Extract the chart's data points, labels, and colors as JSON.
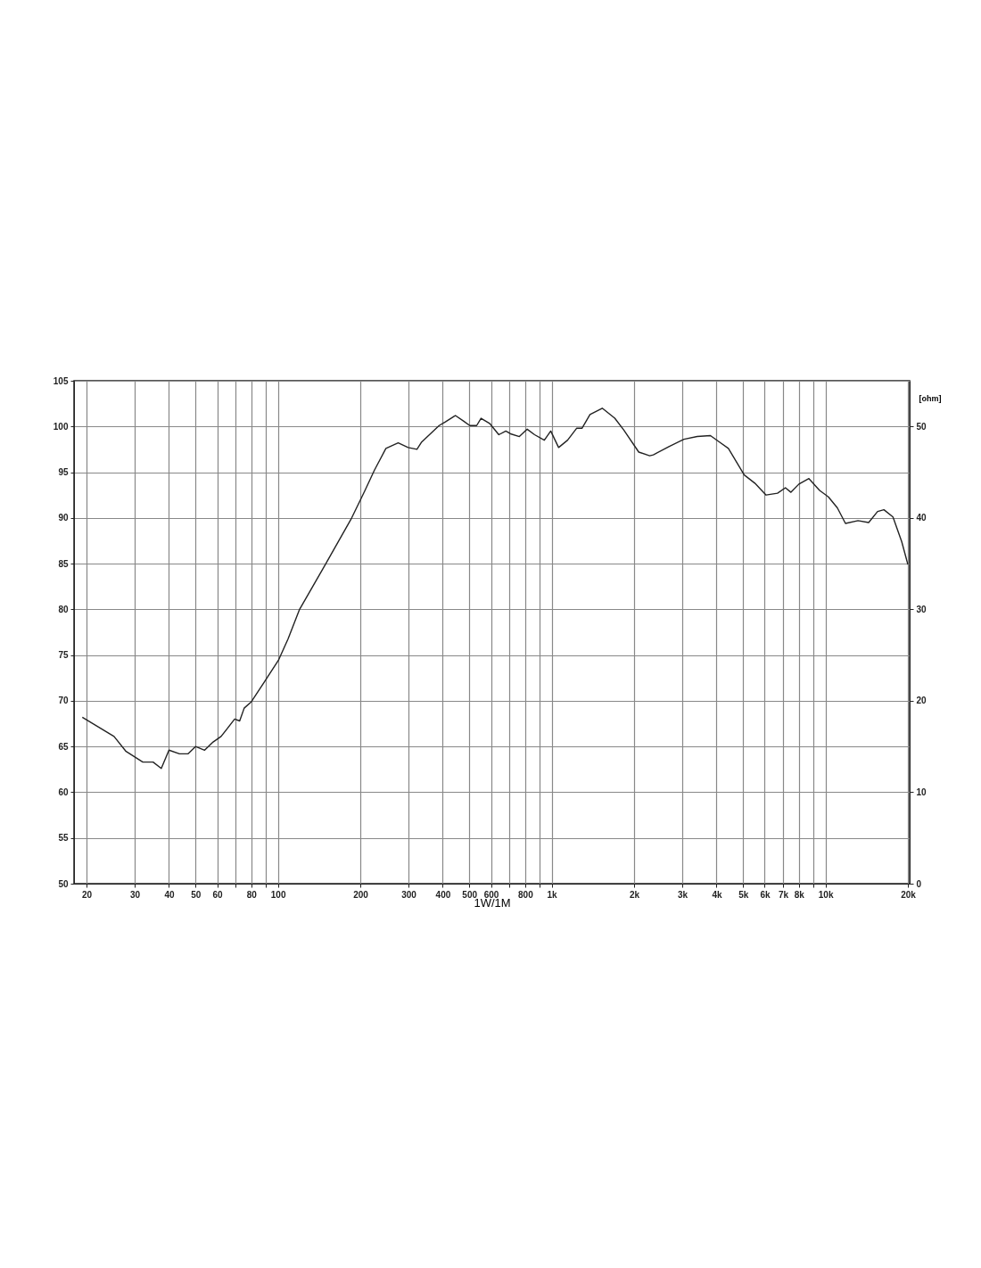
{
  "chart_data": {
    "type": "line",
    "xlabel": "1W/1M",
    "y2label": "[ohm]",
    "log": "x",
    "grid": true,
    "marker": "none",
    "line_style": "solid",
    "xlim": [
      18,
      20300
    ],
    "ylim": [
      50,
      105
    ],
    "y2lim": [
      0,
      55
    ],
    "xticks": [
      20,
      30,
      40,
      50,
      60,
      {
        "value": 70,
        "label": null
      },
      80,
      {
        "value": 90,
        "label": null
      },
      100,
      200,
      300,
      400,
      500,
      600,
      {
        "value": 700,
        "label": null
      },
      800,
      {
        "value": 900,
        "label": null
      },
      {
        "value": 1000,
        "label": "1k"
      },
      {
        "value": 2000,
        "label": "2k"
      },
      {
        "value": 3000,
        "label": "3k"
      },
      {
        "value": 4000,
        "label": "4k"
      },
      {
        "value": 5000,
        "label": "5k"
      },
      {
        "value": 6000,
        "label": "6k"
      },
      {
        "value": 7000,
        "label": "7k"
      },
      {
        "value": 8000,
        "label": "8k"
      },
      {
        "value": 9000,
        "label": null
      },
      {
        "value": 10000,
        "label": "10k"
      },
      {
        "value": 20000,
        "label": "20k"
      }
    ],
    "yticks": [
      50,
      55,
      60,
      65,
      70,
      75,
      80,
      85,
      90,
      95,
      100,
      105
    ],
    "y2ticks": [
      0,
      10,
      20,
      30,
      40,
      50
    ],
    "x": [
      19.3,
      25.2,
      27.8,
      32.1,
      35,
      37.5,
      40,
      43.7,
      46.9,
      50,
      54,
      58,
      62,
      69.5,
      72.5,
      75.3,
      80,
      89.4,
      100.7,
      109,
      120,
      137,
      149,
      186,
      208,
      225,
      248,
      275,
      299,
      322,
      335,
      388,
      409,
      445,
      476,
      502,
      532,
      552,
      595,
      641,
      680,
      707,
      762,
      814,
      866,
      940,
      992,
      1060,
      1143,
      1233,
      1290,
      1380,
      1530,
      1700,
      1835,
      2080,
      2280,
      2350,
      2680,
      3040,
      3400,
      3800,
      4100,
      4420,
      5050,
      5520,
      6070,
      6680,
      7140,
      7480,
      8000,
      8700,
      9520,
      10250,
      11050,
      11830,
      13150,
      14380,
      15500,
      16350,
      17640,
      18990,
      20000
    ],
    "series": [
      {
        "color": "#222222",
        "values": [
          68.2,
          66.1,
          64.5,
          63.3,
          63.3,
          62.6,
          64.6,
          64.2,
          64.2,
          65,
          64.6,
          65.5,
          66.1,
          68,
          67.8,
          69.2,
          69.9,
          72.1,
          74.5,
          76.8,
          80,
          83,
          84.9,
          90,
          93,
          95.2,
          97.6,
          98.2,
          97.7,
          97.5,
          98.3,
          100.1,
          100.5,
          101.2,
          100.6,
          100.1,
          100.1,
          100.9,
          100.3,
          99.1,
          99.5,
          99.2,
          98.9,
          99.7,
          99.1,
          98.5,
          99.5,
          97.7,
          98.5,
          99.8,
          99.8,
          101.3,
          102,
          100.9,
          99.6,
          97.2,
          96.8,
          96.9,
          97.8,
          98.6,
          98.9,
          99,
          98.3,
          97.6,
          94.7,
          93.8,
          92.5,
          92.7,
          93.3,
          92.8,
          93.7,
          94.3,
          93,
          92.3,
          91.1,
          89.4,
          89.7,
          89.5,
          90.7,
          90.9,
          90.1,
          87.4,
          84.9
        ]
      }
    ]
  }
}
